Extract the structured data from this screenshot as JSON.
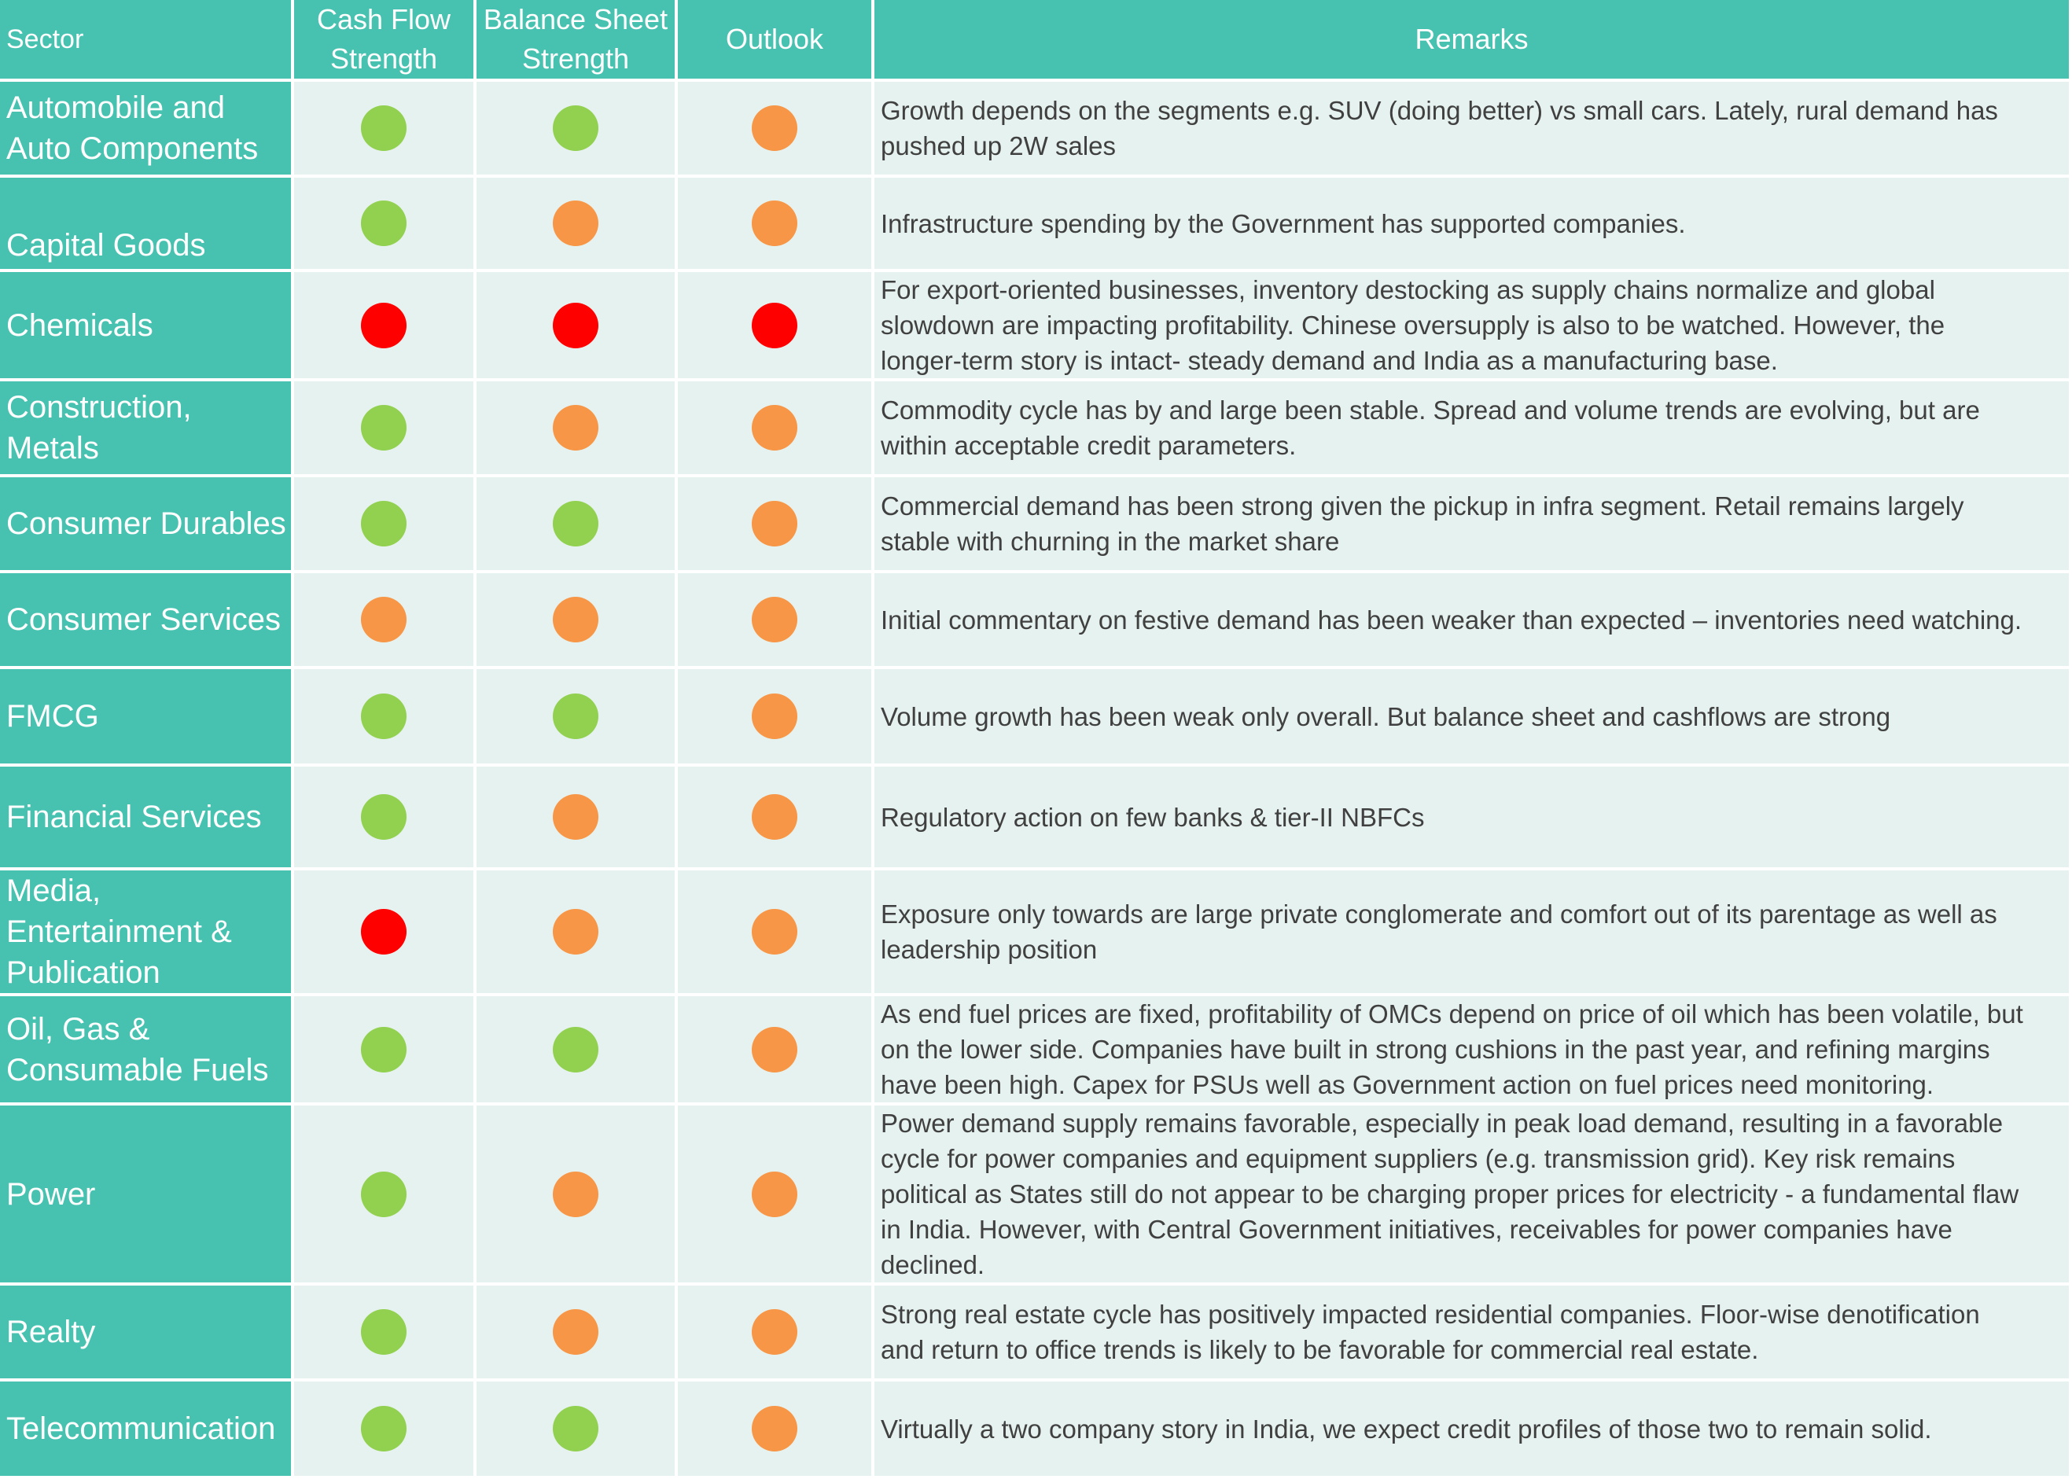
{
  "header": {
    "sector": "Sector",
    "cash_flow": "Cash Flow\nStrength",
    "balance_sheet": "Balance Sheet\nStrength",
    "outlook": "Outlook",
    "remarks": "Remarks"
  },
  "colors": {
    "green": "#92d050",
    "amber": "#f79646",
    "red": "#ff0000",
    "header_teal": "#47c2b0",
    "row_tint": "#e6f2ef"
  },
  "rows": [
    {
      "sector": "Automobile and\nAuto Components",
      "cash_flow": "green",
      "balance_sheet": "green",
      "outlook": "amber",
      "remarks": "Growth depends on the segments e.g. SUV (doing better) vs small cars. Lately, rural demand has\npushed up 2W sales"
    },
    {
      "sector": "Capital Goods",
      "cash_flow": "green",
      "balance_sheet": "amber",
      "outlook": "amber",
      "remarks": "Infrastructure spending by the Government has supported companies."
    },
    {
      "sector": "Chemicals",
      "cash_flow": "red",
      "balance_sheet": "red",
      "outlook": "red",
      "remarks": "For export-oriented businesses, inventory destocking as supply chains normalize and global\nslowdown are impacting profitability. Chinese oversupply is also to be watched. However, the\nlonger-term story is intact- steady demand and India as a manufacturing base."
    },
    {
      "sector": "Construction,\nMetals",
      "cash_flow": "green",
      "balance_sheet": "amber",
      "outlook": "amber",
      "remarks": "Commodity cycle has by and large been stable. Spread and volume trends are evolving, but are\nwithin acceptable credit parameters."
    },
    {
      "sector": "Consumer Durables",
      "cash_flow": "green",
      "balance_sheet": "green",
      "outlook": "amber",
      "remarks": "Commercial demand has been strong given the pickup in infra segment. Retail remains largely\nstable with churning in the market share"
    },
    {
      "sector": "Consumer Services",
      "cash_flow": "amber",
      "balance_sheet": "amber",
      "outlook": "amber",
      "remarks": "Initial commentary on festive demand has been weaker than expected – inventories need watching."
    },
    {
      "sector": "FMCG",
      "cash_flow": "green",
      "balance_sheet": "green",
      "outlook": "amber",
      "remarks": "Volume growth has been weak only overall. But balance sheet and cashflows are strong"
    },
    {
      "sector": "Financial Services",
      "cash_flow": "green",
      "balance_sheet": "amber",
      "outlook": "amber",
      "remarks": "Regulatory action on few banks & tier-II NBFCs"
    },
    {
      "sector": "Media,\nEntertainment &\nPublication",
      "cash_flow": "red",
      "balance_sheet": "amber",
      "outlook": "amber",
      "remarks": "Exposure only towards are large private conglomerate and comfort out of its parentage as well as\nleadership position"
    },
    {
      "sector": "Oil, Gas &\nConsumable Fuels",
      "cash_flow": "green",
      "balance_sheet": "green",
      "outlook": "amber",
      "remarks": "As end fuel prices are fixed, profitability of OMCs depend on price of oil which has been volatile, but\non the lower side. Companies have built in strong cushions in the past year, and refining margins\nhave  been high. Capex for PSUs well as Government action on fuel prices need monitoring."
    },
    {
      "sector": "Power",
      "cash_flow": "green",
      "balance_sheet": "amber",
      "outlook": "amber",
      "remarks": "Power demand supply remains favorable, especially in peak load demand, resulting in a favorable\ncycle for power companies and equipment suppliers (e.g. transmission grid). Key risk remains\npolitical as States still do not appear to be charging proper prices for electricity - a fundamental flaw\nin India. However, with Central Government initiatives, receivables for power companies have\ndeclined."
    },
    {
      "sector": "Realty",
      "cash_flow": "green",
      "balance_sheet": "amber",
      "outlook": "amber",
      "remarks": "Strong real estate cycle has positively impacted residential companies. Floor-wise denotification\nand return to office trends is likely to be favorable for commercial real estate."
    },
    {
      "sector": "Telecommunication",
      "cash_flow": "green",
      "balance_sheet": "green",
      "outlook": "amber",
      "remarks": "Virtually a two company story in India, we expect credit profiles of those two to remain solid."
    }
  ]
}
